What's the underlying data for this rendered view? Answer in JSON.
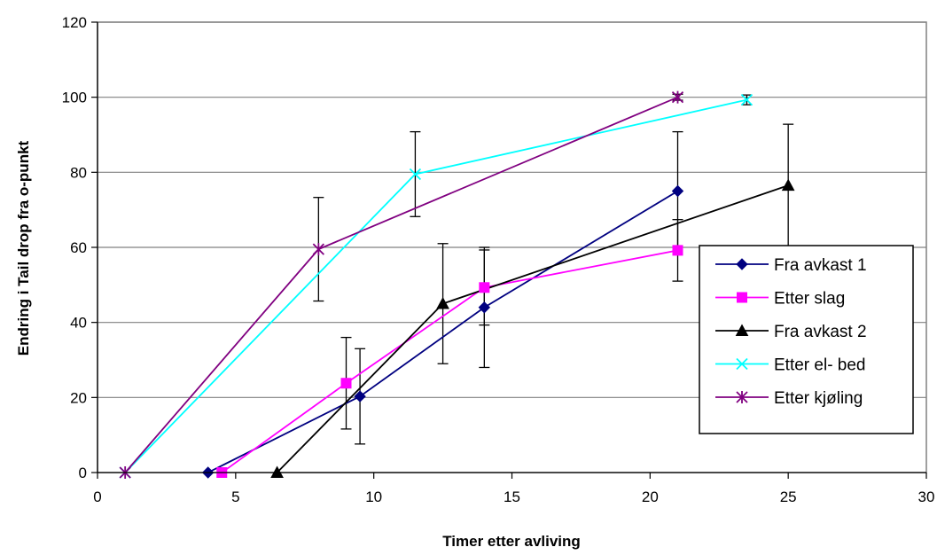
{
  "chart_data": {
    "type": "line",
    "xlabel": "Timer etter avliving",
    "ylabel": "Endring i Tail drop fra o-punkt",
    "xlim": [
      0,
      30
    ],
    "ylim": [
      0,
      120
    ],
    "xticks": [
      0,
      5,
      10,
      15,
      20,
      25,
      30
    ],
    "yticks": [
      0,
      20,
      40,
      60,
      80,
      100,
      120
    ],
    "grid": "horizontal",
    "legend_position": "right",
    "series": [
      {
        "name": "Fra avkast 1",
        "color": "#000080",
        "marker": "diamond",
        "points": [
          {
            "x": 4,
            "y": 0
          },
          {
            "x": 9.5,
            "y": 20.3,
            "err": 12.7
          },
          {
            "x": 14,
            "y": 44,
            "err": 16
          },
          {
            "x": 21,
            "y": 75,
            "err": 15.8
          }
        ]
      },
      {
        "name": "Etter slag",
        "color": "#FF00FF",
        "marker": "square",
        "points": [
          {
            "x": 4.5,
            "y": 0
          },
          {
            "x": 9,
            "y": 23.8,
            "err": 12.2
          },
          {
            "x": 14,
            "y": 49.3,
            "err": 10
          },
          {
            "x": 21,
            "y": 59.2,
            "err": 8.2
          }
        ]
      },
      {
        "name": "Fra avkast 2",
        "color": "#000000",
        "marker": "triangle",
        "points": [
          {
            "x": 6.5,
            "y": 0
          },
          {
            "x": 12.5,
            "y": 45,
            "err": 16
          },
          {
            "x": 25,
            "y": 76.5,
            "err": 16.3
          }
        ]
      },
      {
        "name": "Etter el- bed",
        "color": "#00FFFF",
        "marker": "x",
        "points": [
          {
            "x": 1,
            "y": 0
          },
          {
            "x": 11.5,
            "y": 79.5,
            "err": 11.3
          },
          {
            "x": 23.5,
            "y": 99.3,
            "err": 1.3
          }
        ]
      },
      {
        "name": "Etter kjøling",
        "color": "#800080",
        "marker": "star",
        "points": [
          {
            "x": 1,
            "y": 0
          },
          {
            "x": 8,
            "y": 59.5,
            "err": 13.8
          },
          {
            "x": 21,
            "y": 100,
            "err": 0.8
          }
        ]
      }
    ]
  }
}
